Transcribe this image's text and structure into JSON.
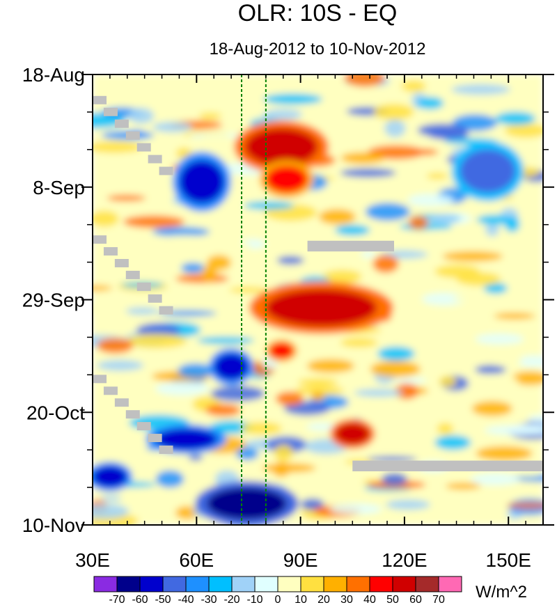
{
  "chart_data": {
    "type": "heatmap",
    "title": "OLR: 10S - EQ",
    "subtitle": "18-Aug-2012 to 10-Nov-2012",
    "xlabel": "",
    "ylabel": "",
    "x_range": [
      30,
      160
    ],
    "x_ticks": [
      {
        "value": 30,
        "label": "30E"
      },
      {
        "value": 60,
        "label": "60E"
      },
      {
        "value": 90,
        "label": "90E"
      },
      {
        "value": 120,
        "label": "120E"
      },
      {
        "value": 150,
        "label": "150E"
      }
    ],
    "y_range_days": [
      0,
      84
    ],
    "y_ticks": [
      {
        "value": 0,
        "label": "18-Aug"
      },
      {
        "value": 21,
        "label": "8-Sep"
      },
      {
        "value": 42,
        "label": "29-Sep"
      },
      {
        "value": 63,
        "label": "20-Oct"
      },
      {
        "value": 84,
        "label": "10-Nov"
      }
    ],
    "reference_lines_lon": [
      73,
      80
    ],
    "units": "W/m^2",
    "colorbar": {
      "labels": [
        "-70",
        "-60",
        "-50",
        "-40",
        "-30",
        "-20",
        "-10",
        "0",
        "10",
        "20",
        "30",
        "40",
        "50",
        "60",
        "70"
      ],
      "colors": [
        "#8a2be2",
        "#00008b",
        "#0000cd",
        "#4169e1",
        "#1e90ff",
        "#00bfff",
        "#a0d2f8",
        "#e0ffff",
        "#ffffc0",
        "#ffe040",
        "#ffb000",
        "#ff7000",
        "#ff0000",
        "#d00000",
        "#a52a2a",
        "#ff69b4"
      ]
    },
    "anomaly_features": [
      {
        "name": "positive-band-1",
        "lon": [
          74,
          95
        ],
        "day": [
          10,
          17
        ],
        "value": 50
      },
      {
        "name": "positive-band-2",
        "lon": [
          80,
          92
        ],
        "day": [
          17,
          22
        ],
        "value": 45
      },
      {
        "name": "positive-band-3",
        "lon": [
          80,
          112
        ],
        "day": [
          40,
          47
        ],
        "value": 50
      },
      {
        "name": "positive-band-4",
        "lon": [
          81,
          88
        ],
        "day": [
          50,
          53
        ],
        "value": 45
      },
      {
        "name": "positive-band-5",
        "lon": [
          100,
          110
        ],
        "day": [
          65,
          69
        ],
        "value": 50
      },
      {
        "name": "negative-band-1",
        "lon": [
          55,
          68
        ],
        "day": [
          16,
          24
        ],
        "value": -60
      },
      {
        "name": "negative-band-2",
        "lon": [
          136,
          152
        ],
        "day": [
          14,
          22
        ],
        "value": -50
      },
      {
        "name": "negative-band-3",
        "lon": [
          65,
          75
        ],
        "day": [
          52,
          57
        ],
        "value": -55
      },
      {
        "name": "negative-band-4",
        "lon": [
          48,
          66
        ],
        "day": [
          66,
          70
        ],
        "value": -60
      },
      {
        "name": "negative-band-5",
        "lon": [
          30,
          40
        ],
        "day": [
          73,
          77
        ],
        "value": -60
      },
      {
        "name": "negative-band-6",
        "lon": [
          63,
          86
        ],
        "day": [
          77,
          83
        ],
        "value": -70
      }
    ],
    "missing_data_regions": [
      {
        "lon": [
          92,
          117
        ],
        "day": [
          31,
          33
        ]
      },
      {
        "lon": [
          105,
          160
        ],
        "day": [
          72,
          74
        ]
      }
    ]
  }
}
